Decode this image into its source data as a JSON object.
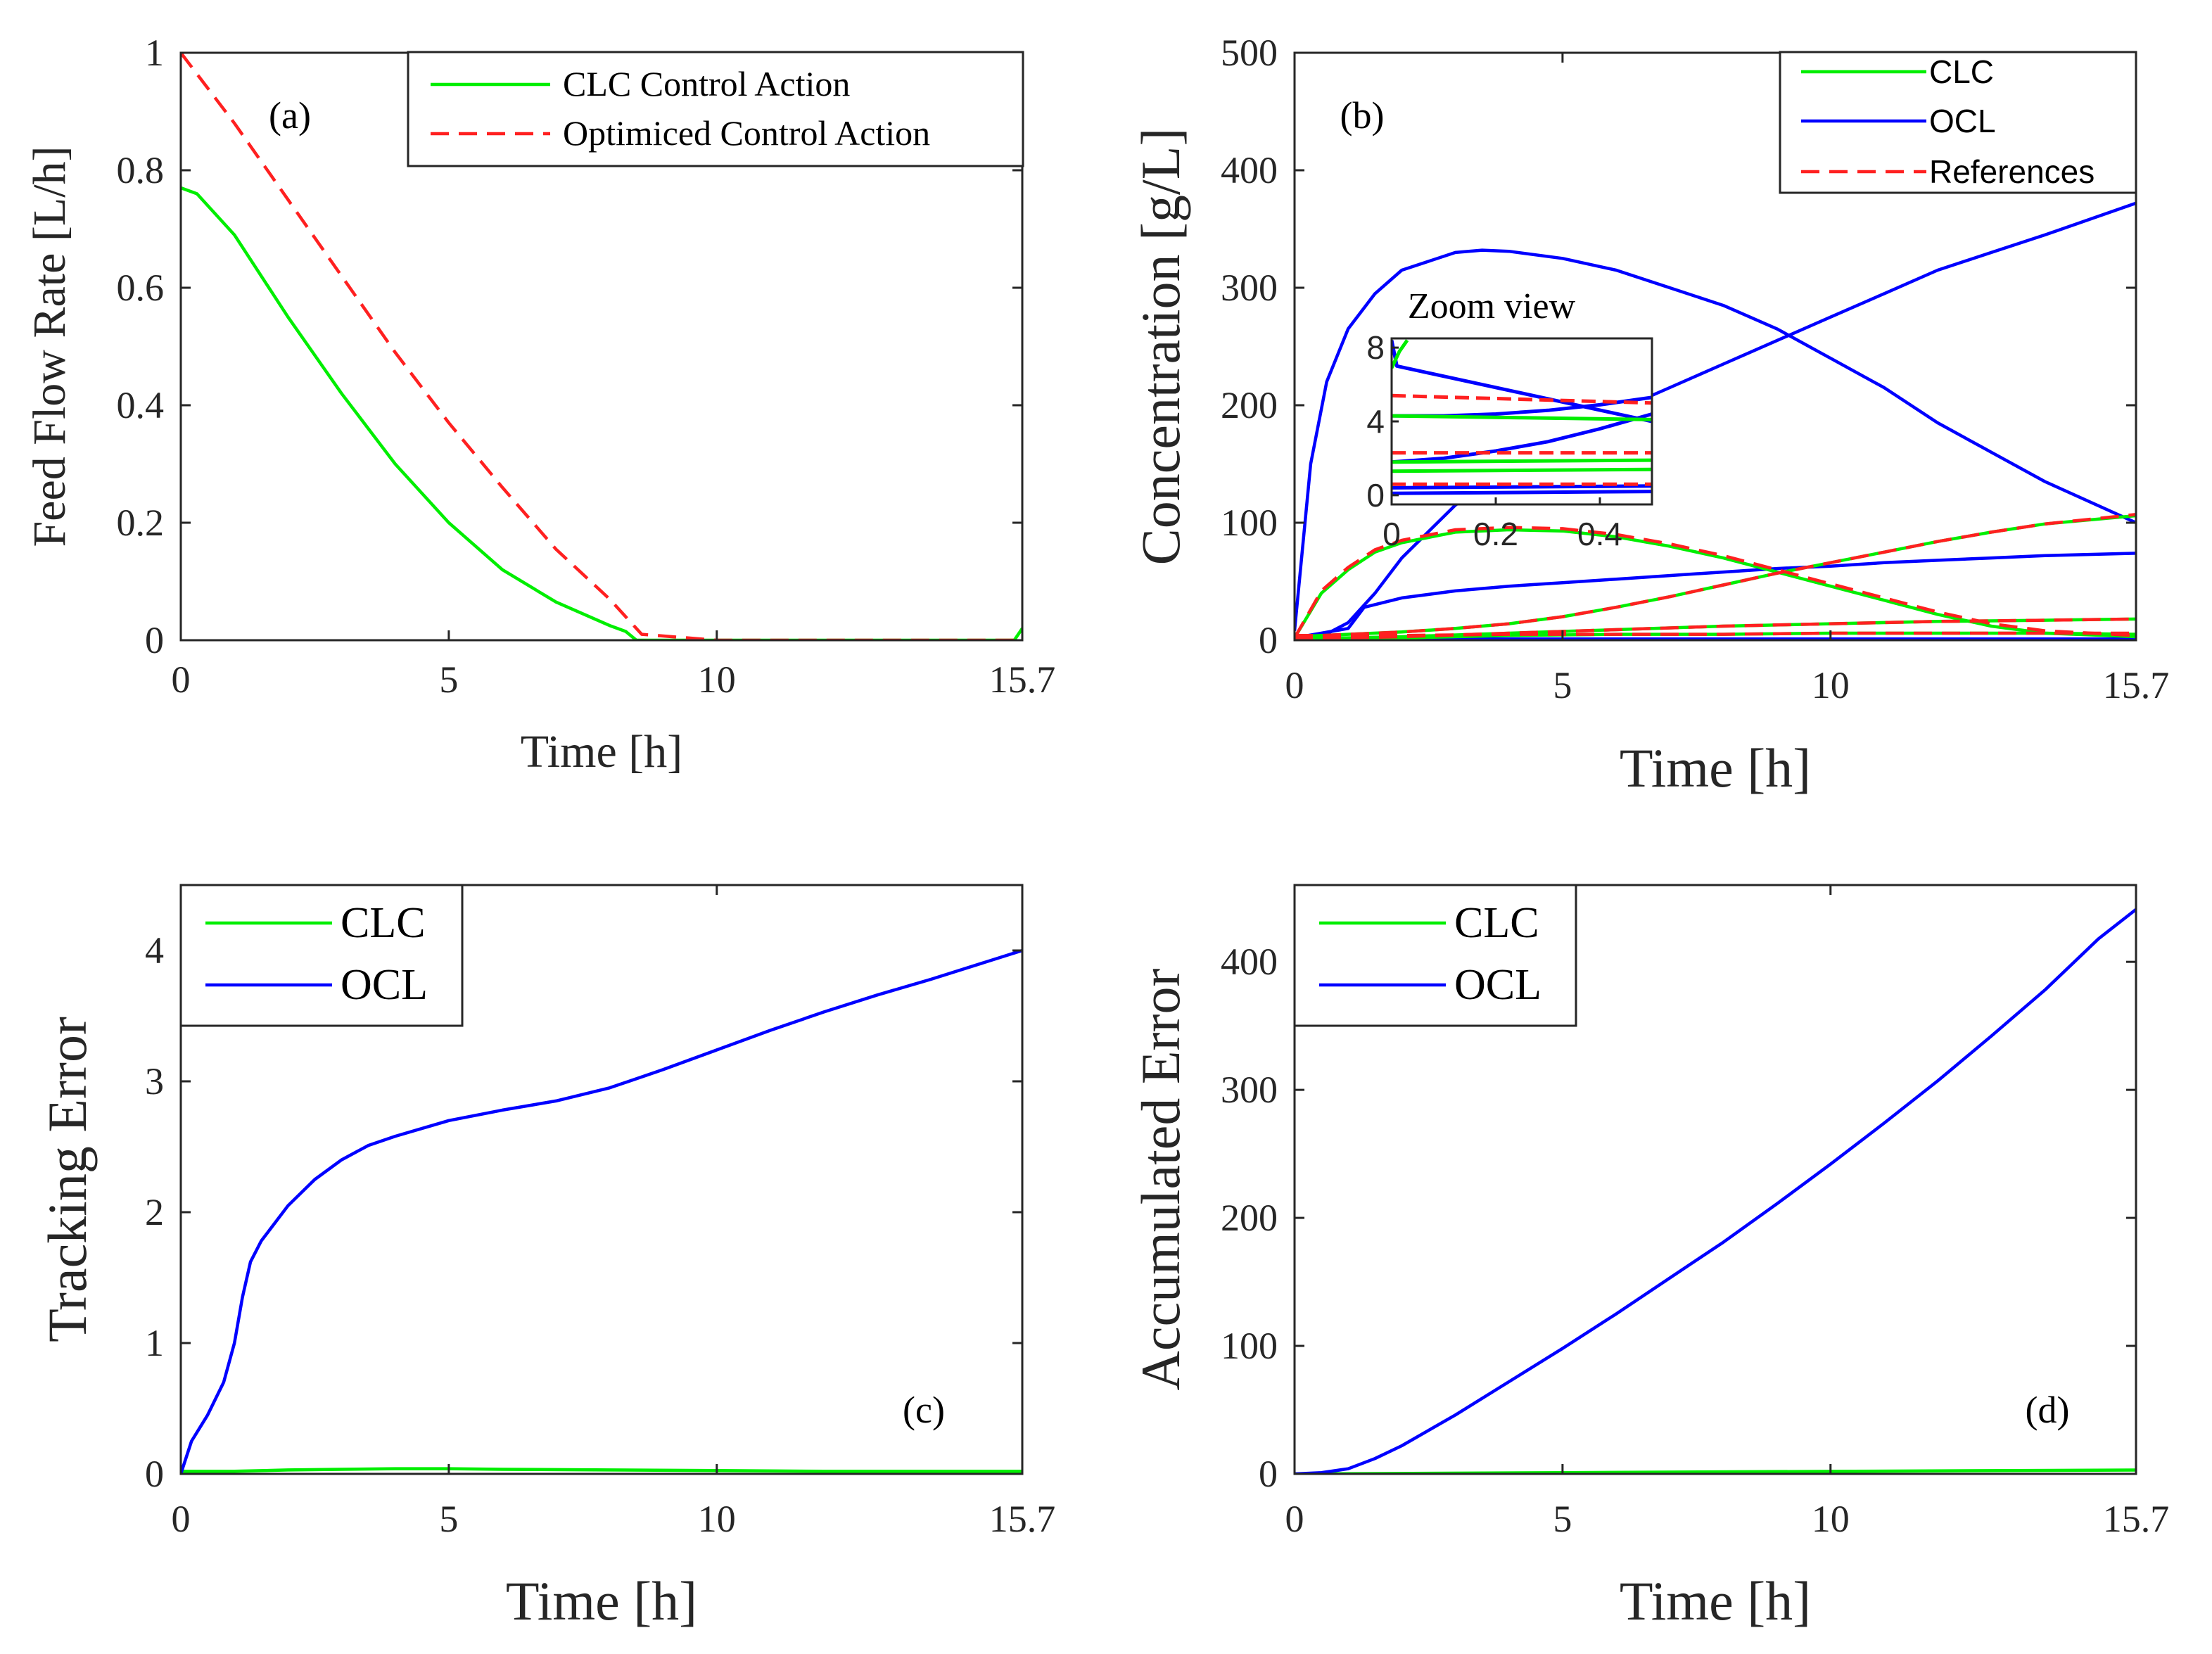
{
  "chart_data": [
    {
      "id": "a",
      "type": "line",
      "annotation": "(a)",
      "xlabel": "Time [h]",
      "ylabel": "Feed Flow Rate [L/h]",
      "xlim": [
        0,
        15.7
      ],
      "ylim": [
        0,
        1
      ],
      "xticks": [
        0,
        5,
        10,
        15.7
      ],
      "xtick_labels": [
        "0",
        "5",
        "10",
        "15.7"
      ],
      "yticks": [
        0,
        0.2,
        0.4,
        0.6,
        0.8,
        1
      ],
      "ytick_labels": [
        "0",
        "0.2",
        "0.4",
        "0.6",
        "0.8",
        "1"
      ],
      "legend_position": "top-right",
      "series": [
        {
          "name": "CLC Control Action",
          "color": "#00ee00",
          "dash": "solid",
          "x": [
            0,
            0.3,
            1,
            2,
            3,
            4,
            5,
            6,
            7,
            8,
            8.3,
            8.5,
            10,
            12,
            14,
            15.55,
            15.7
          ],
          "y": [
            0.77,
            0.76,
            0.69,
            0.55,
            0.42,
            0.3,
            0.2,
            0.12,
            0.065,
            0.025,
            0.015,
            0.0,
            0.0,
            0.0,
            0.0,
            0.0,
            0.02
          ]
        },
        {
          "name": "Optimiced Control Action",
          "color": "#ff2020",
          "dash": "dashed",
          "x": [
            0,
            1,
            2,
            3,
            4,
            5,
            6,
            7,
            8,
            8.6,
            10,
            12,
            14,
            15.7
          ],
          "y": [
            1.0,
            0.88,
            0.75,
            0.62,
            0.49,
            0.37,
            0.26,
            0.155,
            0.07,
            0.01,
            0.0,
            0.0,
            0.0,
            0.0
          ]
        }
      ]
    },
    {
      "id": "b",
      "type": "line",
      "annotation": "(b)",
      "xlabel": "Time [h]",
      "ylabel": "Concentration [g/L]",
      "xlim": [
        0,
        15.7
      ],
      "ylim": [
        0,
        500
      ],
      "xticks": [
        0,
        5,
        10,
        15.7
      ],
      "xtick_labels": [
        "0",
        "5",
        "10",
        "15.7"
      ],
      "yticks": [
        0,
        100,
        200,
        300,
        400,
        500
      ],
      "ytick_labels": [
        "0",
        "100",
        "200",
        "300",
        "400",
        "500"
      ],
      "legend_position": "top-right",
      "legend": [
        {
          "name": "CLC",
          "color": "#00ee00",
          "dash": "solid"
        },
        {
          "name": "OCL",
          "color": "#0000ff",
          "dash": "solid"
        },
        {
          "name": "References",
          "color": "#ff2020",
          "dash": "dashed"
        }
      ],
      "series": [
        {
          "name": "OCL-1",
          "color": "#0000ff",
          "dash": "solid",
          "x": [
            0,
            0.3,
            0.6,
            1,
            1.5,
            2,
            3,
            3.5,
            4,
            5,
            6,
            7,
            8,
            9,
            10,
            11,
            12,
            13,
            14,
            15.7
          ],
          "y": [
            8,
            150,
            220,
            265,
            295,
            315,
            330,
            332,
            331,
            325,
            315,
            300,
            285,
            265,
            240,
            215,
            185,
            160,
            135,
            100
          ]
        },
        {
          "name": "OCL-2",
          "color": "#0000ff",
          "dash": "solid",
          "x": [
            0,
            0.5,
            1,
            1.5,
            2,
            3,
            4,
            5,
            6,
            7,
            8,
            9,
            10,
            11,
            12,
            13,
            14,
            15.7
          ],
          "y": [
            2,
            3,
            15,
            40,
            70,
            115,
            145,
            170,
            195,
            215,
            235,
            255,
            275,
            295,
            315,
            330,
            345,
            372
          ]
        },
        {
          "name": "OCL-3",
          "color": "#0000ff",
          "dash": "solid",
          "x": [
            0,
            1,
            1.3,
            2,
            3,
            4,
            5,
            6,
            7,
            8,
            9,
            10,
            11,
            12,
            13,
            14,
            15.7
          ],
          "y": [
            2,
            10,
            28,
            36,
            42,
            46,
            49,
            52,
            55,
            58,
            61,
            63,
            66,
            68,
            70,
            72,
            74
          ]
        },
        {
          "name": "OCL-4",
          "color": "#0000ff",
          "dash": "solid",
          "x": [
            0,
            5,
            10,
            15.7
          ],
          "y": [
            1,
            1,
            1,
            1
          ]
        },
        {
          "name": "OCL-5",
          "color": "#0000ff",
          "dash": "solid",
          "x": [
            0,
            5,
            10,
            15.7
          ],
          "y": [
            0,
            0,
            0,
            0
          ]
        },
        {
          "name": "CLC-1",
          "color": "#00ee00",
          "dash": "solid",
          "x": [
            0,
            0.5,
            1,
            1.5,
            2,
            3,
            4,
            5,
            6,
            7,
            8,
            9,
            10,
            11,
            12,
            13,
            14,
            15.7
          ],
          "y": [
            2,
            40,
            60,
            75,
            83,
            92,
            94,
            93,
            88,
            80,
            70,
            58,
            46,
            34,
            22,
            12,
            6,
            3
          ]
        },
        {
          "name": "CLC-2",
          "color": "#00ee00",
          "dash": "solid",
          "x": [
            0,
            1,
            2,
            3,
            4,
            5,
            6,
            7,
            8,
            9,
            10,
            11,
            12,
            13,
            14,
            15.7
          ],
          "y": [
            3,
            5,
            7,
            10,
            14,
            20,
            28,
            37,
            47,
            57,
            66,
            75,
            84,
            92,
            99,
            106
          ]
        },
        {
          "name": "CLC-3",
          "color": "#00ee00",
          "dash": "solid",
          "x": [
            0,
            2,
            4,
            6,
            8,
            10,
            12,
            14,
            15.7
          ],
          "y": [
            1,
            3,
            6,
            9,
            12,
            14,
            16,
            17,
            18
          ]
        },
        {
          "name": "CLC-4",
          "color": "#00ee00",
          "dash": "solid",
          "x": [
            0,
            2,
            4,
            6,
            8,
            10,
            12,
            14,
            15.7
          ],
          "y": [
            0,
            2,
            4,
            5,
            5,
            6,
            6,
            6,
            5
          ]
        },
        {
          "name": "Ref-1",
          "color": "#ff2020",
          "dash": "dashed",
          "x": [
            0,
            0.5,
            1,
            1.5,
            2,
            3,
            4,
            5,
            6,
            7,
            8,
            9,
            10,
            11,
            12,
            13,
            14,
            15.7
          ],
          "y": [
            2,
            42,
            62,
            77,
            85,
            94,
            96,
            95,
            90,
            82,
            72,
            60,
            48,
            36,
            24,
            14,
            8,
            4
          ]
        },
        {
          "name": "Ref-2",
          "color": "#ff2020",
          "dash": "dashed",
          "x": [
            0,
            1,
            2,
            3,
            4,
            5,
            6,
            7,
            8,
            9,
            10,
            11,
            12,
            13,
            14,
            15.7
          ],
          "y": [
            3,
            5,
            7,
            10,
            14,
            20,
            28,
            37,
            47,
            57,
            66,
            75,
            84,
            92,
            99,
            107
          ]
        },
        {
          "name": "Ref-3",
          "color": "#ff2020",
          "dash": "dashed",
          "x": [
            0,
            2,
            4,
            6,
            8,
            10,
            12,
            14,
            15.7
          ],
          "y": [
            1,
            3,
            6,
            9,
            12,
            14,
            16,
            17,
            18
          ]
        },
        {
          "name": "Ref-4",
          "color": "#ff2020",
          "dash": "dashed",
          "x": [
            0,
            2,
            4,
            6,
            8,
            10,
            12,
            14,
            15.7
          ],
          "y": [
            4,
            4,
            5,
            5,
            5,
            6,
            6,
            6,
            6
          ]
        }
      ],
      "inset": {
        "title": "Zoom view",
        "xlim": [
          0,
          0.5
        ],
        "ylim": [
          -0.5,
          8.5
        ],
        "xticks": [
          0,
          0.2,
          0.4
        ],
        "xtick_labels": [
          "0",
          "0.2",
          "0.4"
        ],
        "yticks": [
          0,
          4,
          8
        ],
        "ytick_labels": [
          "0",
          "4",
          "8"
        ],
        "series": [
          {
            "name": "OCL-z1",
            "color": "#0000ff",
            "dash": "solid",
            "x": [
              0.0,
              0.01,
              0.5
            ],
            "y": [
              8.4,
              7.0,
              4.0
            ]
          },
          {
            "name": "OCL-z2",
            "color": "#0000ff",
            "dash": "solid",
            "x": [
              0.0,
              0.1,
              0.2,
              0.3,
              0.4,
              0.5
            ],
            "y": [
              1.8,
              2.0,
              2.4,
              2.9,
              3.6,
              4.4
            ]
          },
          {
            "name": "OCL-z3",
            "color": "#0000ff",
            "dash": "solid",
            "x": [
              0.0,
              0.1,
              0.2,
              0.3,
              0.4,
              0.5
            ],
            "y": [
              4.3,
              4.3,
              4.4,
              4.6,
              4.9,
              5.3
            ]
          },
          {
            "name": "OCL-z4",
            "color": "#0000ff",
            "dash": "solid",
            "x": [
              0.0,
              0.5
            ],
            "y": [
              0.4,
              0.5
            ]
          },
          {
            "name": "OCL-z5",
            "color": "#0000ff",
            "dash": "solid",
            "x": [
              0.0,
              0.5
            ],
            "y": [
              0.1,
              0.2
            ]
          },
          {
            "name": "CLC-z1",
            "color": "#00ee00",
            "dash": "solid",
            "x": [
              0.0,
              0.015,
              0.03
            ],
            "y": [
              6.9,
              7.8,
              8.4
            ]
          },
          {
            "name": "CLC-z2",
            "color": "#00ee00",
            "dash": "solid",
            "x": [
              0.0,
              0.25,
              0.5
            ],
            "y": [
              4.3,
              4.2,
              4.1
            ]
          },
          {
            "name": "CLC-z3",
            "color": "#00ee00",
            "dash": "solid",
            "x": [
              0.0,
              0.5
            ],
            "y": [
              1.8,
              1.9
            ]
          },
          {
            "name": "CLC-z4",
            "color": "#00ee00",
            "dash": "solid",
            "x": [
              0.0,
              0.5
            ],
            "y": [
              1.3,
              1.4
            ]
          },
          {
            "name": "Ref-z1",
            "color": "#ff2020",
            "dash": "dashed",
            "x": [
              0.0,
              0.5
            ],
            "y": [
              5.4,
              5.0
            ]
          },
          {
            "name": "Ref-z2",
            "color": "#ff2020",
            "dash": "dashed",
            "x": [
              0.0,
              0.5
            ],
            "y": [
              2.3,
              2.3
            ]
          },
          {
            "name": "Ref-z3",
            "color": "#ff2020",
            "dash": "dashed",
            "x": [
              0.0,
              0.5
            ],
            "y": [
              0.6,
              0.6
            ]
          }
        ]
      }
    },
    {
      "id": "c",
      "type": "line",
      "annotation": "(c)",
      "xlabel": "Time [h]",
      "ylabel": "Tracking Error",
      "xlim": [
        0,
        15.7
      ],
      "ylim": [
        0,
        4.5
      ],
      "xticks": [
        0,
        5,
        10,
        15.7
      ],
      "xtick_labels": [
        "0",
        "5",
        "10",
        "15.7"
      ],
      "yticks": [
        0,
        1,
        2,
        3,
        4
      ],
      "ytick_labels": [
        "0",
        "1",
        "2",
        "3",
        "4"
      ],
      "legend_position": "top-left",
      "series": [
        {
          "name": "CLC",
          "color": "#00ee00",
          "dash": "solid",
          "x": [
            0,
            1,
            2,
            3,
            4,
            5,
            6,
            8,
            10,
            12,
            14,
            15.7
          ],
          "y": [
            0.02,
            0.02,
            0.03,
            0.035,
            0.04,
            0.04,
            0.035,
            0.03,
            0.025,
            0.02,
            0.02,
            0.02
          ]
        },
        {
          "name": "OCL",
          "color": "#0000ff",
          "dash": "solid",
          "x": [
            0,
            0.2,
            0.5,
            0.8,
            1.0,
            1.15,
            1.3,
            1.5,
            2,
            2.5,
            3,
            3.5,
            4,
            5,
            6,
            7,
            8,
            9,
            10,
            11,
            12,
            13,
            14,
            15.7
          ],
          "y": [
            0.0,
            0.25,
            0.45,
            0.7,
            1.0,
            1.35,
            1.62,
            1.78,
            2.05,
            2.25,
            2.4,
            2.51,
            2.58,
            2.7,
            2.78,
            2.85,
            2.95,
            3.09,
            3.24,
            3.39,
            3.53,
            3.66,
            3.78,
            4.0
          ]
        }
      ]
    },
    {
      "id": "d",
      "type": "line",
      "annotation": "(d)",
      "xlabel": "Time [h]",
      "ylabel": "Accumulated Error",
      "xlim": [
        0,
        15.7
      ],
      "ylim": [
        0,
        460
      ],
      "xticks": [
        0,
        5,
        10,
        15.7
      ],
      "xtick_labels": [
        "0",
        "5",
        "10",
        "15.7"
      ],
      "yticks": [
        0,
        100,
        200,
        300,
        400
      ],
      "ytick_labels": [
        "0",
        "100",
        "200",
        "300",
        "400"
      ],
      "legend_position": "top-left",
      "series": [
        {
          "name": "CLC",
          "color": "#00ee00",
          "dash": "solid",
          "x": [
            0,
            5,
            10,
            15.7
          ],
          "y": [
            0,
            1,
            2,
            3
          ]
        },
        {
          "name": "OCL",
          "color": "#0000ff",
          "dash": "solid",
          "x": [
            0,
            0.5,
            1,
            1.5,
            2,
            3,
            4,
            5,
            6,
            7,
            8,
            9,
            10,
            11,
            12,
            13,
            14,
            15,
            15.7
          ],
          "y": [
            0,
            1,
            4,
            12,
            22,
            46,
            72,
            98,
            125,
            153,
            181,
            211,
            242,
            274,
            307,
            342,
            378,
            418,
            441
          ]
        }
      ]
    }
  ]
}
